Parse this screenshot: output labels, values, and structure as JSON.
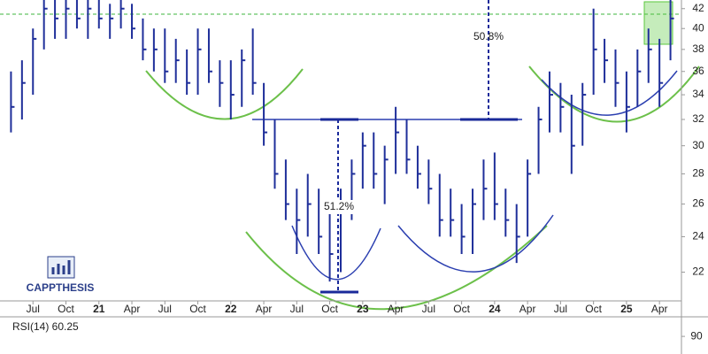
{
  "chart_data": {
    "type": "hlc",
    "log_scale": true,
    "color": "#1f2f9a",
    "x": [
      "2020-05",
      "2020-06",
      "2020-07",
      "2020-08",
      "2020-09",
      "2020-10",
      "2020-11",
      "2020-12",
      "2021-01",
      "2021-02",
      "2021-03",
      "2021-04",
      "2021-05",
      "2021-06",
      "2021-07",
      "2021-08",
      "2021-09",
      "2021-10",
      "2021-11",
      "2021-12",
      "2022-01",
      "2022-02",
      "2022-03",
      "2022-04",
      "2022-05",
      "2022-06",
      "2022-07",
      "2022-08",
      "2022-09",
      "2022-10",
      "2022-11",
      "2022-12",
      "2023-01",
      "2023-02",
      "2023-03",
      "2023-04",
      "2023-05",
      "2023-06",
      "2023-07",
      "2023-08",
      "2023-09",
      "2023-10",
      "2023-11",
      "2023-12",
      "2024-01",
      "2024-02",
      "2024-03",
      "2024-04",
      "2024-05",
      "2024-06",
      "2024-07",
      "2024-08",
      "2024-09",
      "2024-10",
      "2024-11",
      "2024-12",
      "2025-01",
      "2025-02",
      "2025-03",
      "2025-04",
      "2025-05"
    ],
    "high": [
      36,
      37,
      40,
      43,
      43.5,
      43,
      43.5,
      43,
      43,
      42.5,
      43,
      42.5,
      41,
      40,
      40,
      39,
      38,
      40,
      40,
      37,
      37,
      38,
      40,
      35,
      32,
      29,
      27,
      28,
      27,
      26,
      27,
      29,
      31,
      31,
      30,
      33,
      32,
      30,
      29,
      28,
      27,
      26,
      27,
      29,
      29.5,
      27,
      26,
      29,
      33,
      36,
      35,
      34,
      35,
      42,
      39,
      38,
      36,
      38,
      40,
      39,
      43
    ],
    "low": [
      31,
      32,
      34,
      38,
      39,
      39,
      40,
      39,
      40,
      39,
      40,
      39,
      37,
      36,
      35,
      35,
      34,
      34,
      35,
      33,
      32,
      33,
      34,
      30,
      27,
      25,
      23,
      24,
      23,
      21.5,
      22,
      25,
      27,
      27,
      26,
      28,
      28,
      27,
      26,
      24,
      24,
      23,
      23,
      25,
      25,
      24,
      22.5,
      24,
      28,
      31,
      31,
      28,
      30,
      34,
      35,
      33,
      31,
      33,
      35,
      33,
      37
    ],
    "close": [
      33,
      35,
      39,
      42,
      41,
      42,
      41,
      42,
      41,
      41,
      42,
      40,
      38,
      38,
      36,
      37,
      35,
      38,
      36,
      35,
      34,
      37,
      35,
      31,
      28,
      26,
      25,
      26,
      24,
      23,
      26,
      28,
      30,
      28,
      29,
      31,
      29,
      28,
      27,
      25,
      25,
      24,
      26,
      27,
      26,
      25,
      24,
      28,
      32,
      34,
      33,
      30,
      34,
      38,
      37,
      35,
      33,
      36,
      38,
      35,
      41
    ],
    "xlim": [
      "2020-04",
      "2025-06"
    ],
    "xticks": [
      {
        "value": "2020-07",
        "label": "Jul"
      },
      {
        "value": "2020-10",
        "label": "Oct"
      },
      {
        "value": "2021-01",
        "label": "21"
      },
      {
        "value": "2021-04",
        "label": "Apr"
      },
      {
        "value": "2021-07",
        "label": "Jul"
      },
      {
        "value": "2021-10",
        "label": "Oct"
      },
      {
        "value": "2022-01",
        "label": "22"
      },
      {
        "value": "2022-04",
        "label": "Apr"
      },
      {
        "value": "2022-07",
        "label": "Jul"
      },
      {
        "value": "2022-10",
        "label": "Oct"
      },
      {
        "value": "2023-01",
        "label": "23"
      },
      {
        "value": "2023-04",
        "label": "Apr"
      },
      {
        "value": "2023-07",
        "label": "Jul"
      },
      {
        "value": "2023-10",
        "label": "Oct"
      },
      {
        "value": "2024-01",
        "label": "24"
      },
      {
        "value": "2024-04",
        "label": "Apr"
      },
      {
        "value": "2024-07",
        "label": "Jul"
      },
      {
        "value": "2024-10",
        "label": "Oct"
      },
      {
        "value": "2025-01",
        "label": "25"
      },
      {
        "value": "2025-04",
        "label": "Apr"
      }
    ],
    "ylim": [
      20.5,
      42.9
    ],
    "yticks": [
      22,
      24,
      26,
      28,
      30,
      32,
      34,
      36,
      38,
      40,
      42
    ],
    "annotations": [
      "50.8%",
      "51.2%"
    ],
    "watermark": "CAPPTHESIS",
    "indicator": {
      "title": "RSI(14) 60.25",
      "ylim": [
        81,
        100
      ],
      "yticks": [
        90
      ]
    }
  }
}
